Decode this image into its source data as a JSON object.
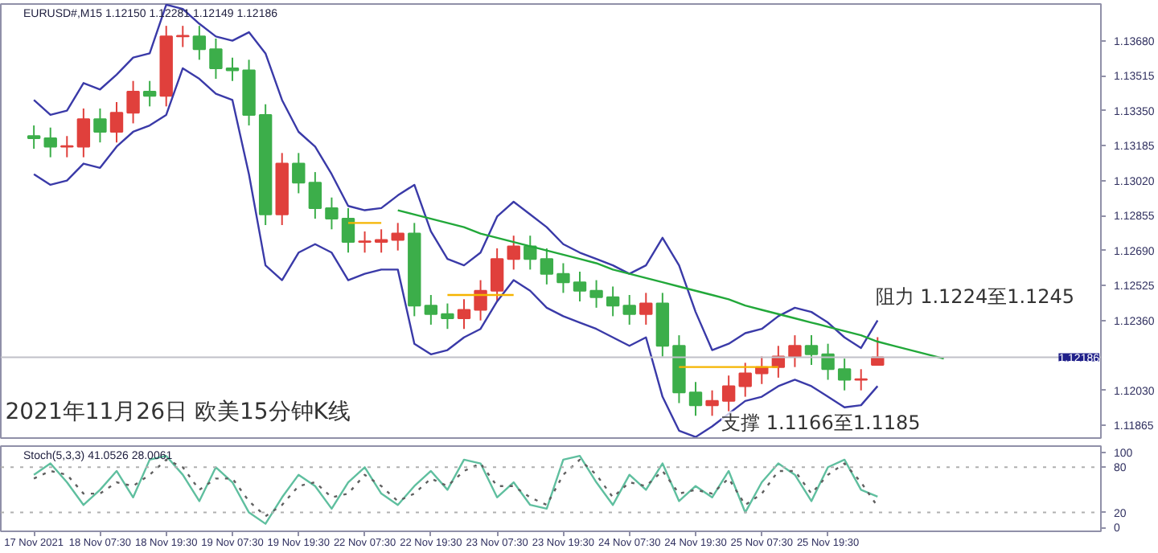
{
  "chart_data": [
    {
      "type": "candlestick",
      "title": "EURUSD#,M15 1.12150 1.12281 1.12149 1.12186",
      "categories": [
        null,
        null,
        null,
        null,
        null,
        null,
        null,
        null,
        null,
        null,
        null,
        null,
        null,
        null,
        null,
        null,
        null,
        null,
        null,
        null,
        null,
        null,
        null,
        null,
        null,
        null,
        null,
        null,
        null,
        null,
        null,
        null,
        null,
        null,
        null,
        null,
        null,
        null,
        null,
        null,
        null,
        null,
        null,
        null,
        null,
        null,
        null,
        null,
        null,
        null,
        null,
        null,
        null,
        null,
        null,
        null
      ],
      "ohlc": [
        [
          1.1323,
          1.1328,
          1.1317,
          1.1322
        ],
        [
          1.1322,
          1.1327,
          1.1313,
          1.1318
        ],
        [
          1.1318,
          1.1323,
          1.1313,
          1.1318
        ],
        [
          1.1318,
          1.1336,
          1.1313,
          1.1331
        ],
        [
          1.1331,
          1.1336,
          1.132,
          1.1325
        ],
        [
          1.1325,
          1.1339,
          1.132,
          1.1334
        ],
        [
          1.1334,
          1.1349,
          1.1329,
          1.1344
        ],
        [
          1.1344,
          1.1349,
          1.1337,
          1.1342
        ],
        [
          1.1342,
          1.1375,
          1.1337,
          1.137
        ],
        [
          1.137,
          1.1375,
          1.1365,
          1.137
        ],
        [
          1.137,
          1.1375,
          1.1359,
          1.1364
        ],
        [
          1.1364,
          1.1369,
          1.135,
          1.1355
        ],
        [
          1.1355,
          1.136,
          1.1349,
          1.1354
        ],
        [
          1.1354,
          1.1359,
          1.1328,
          1.1333
        ],
        [
          1.1333,
          1.1338,
          1.1281,
          1.1286
        ],
        [
          1.1286,
          1.1315,
          1.1281,
          1.131
        ],
        [
          1.131,
          1.1315,
          1.1296,
          1.1301
        ],
        [
          1.1301,
          1.1306,
          1.1284,
          1.1289
        ],
        [
          1.1289,
          1.1294,
          1.1279,
          1.1284
        ],
        [
          1.1284,
          1.1289,
          1.1268,
          1.1273
        ],
        [
          1.1273,
          1.1278,
          1.1268,
          1.1273
        ],
        [
          1.1273,
          1.1279,
          1.1268,
          1.1274
        ],
        [
          1.1274,
          1.1282,
          1.1269,
          1.1277
        ],
        [
          1.1277,
          1.1282,
          1.1238,
          1.1243
        ],
        [
          1.1243,
          1.1248,
          1.1234,
          1.1239
        ],
        [
          1.1239,
          1.1244,
          1.1232,
          1.1237
        ],
        [
          1.1237,
          1.1246,
          1.1232,
          1.1241
        ],
        [
          1.1241,
          1.1255,
          1.1236,
          1.125
        ],
        [
          1.125,
          1.127,
          1.1245,
          1.1265
        ],
        [
          1.1265,
          1.1276,
          1.126,
          1.1271
        ],
        [
          1.1271,
          1.1276,
          1.126,
          1.1265
        ],
        [
          1.1265,
          1.127,
          1.1253,
          1.1258
        ],
        [
          1.1258,
          1.1263,
          1.1249,
          1.1254
        ],
        [
          1.1254,
          1.1259,
          1.1245,
          1.125
        ],
        [
          1.125,
          1.1255,
          1.1242,
          1.1247
        ],
        [
          1.1247,
          1.1252,
          1.1238,
          1.1243
        ],
        [
          1.1243,
          1.1248,
          1.1234,
          1.1239
        ],
        [
          1.1239,
          1.1249,
          1.1234,
          1.1244
        ],
        [
          1.1244,
          1.1249,
          1.1219,
          1.1224
        ],
        [
          1.1224,
          1.1229,
          1.1197,
          1.1202
        ],
        [
          1.1202,
          1.1207,
          1.1191,
          1.1196
        ],
        [
          1.1196,
          1.1203,
          1.1191,
          1.1198
        ],
        [
          1.1198,
          1.121,
          1.1193,
          1.1205
        ],
        [
          1.1205,
          1.1216,
          1.12,
          1.1211
        ],
        [
          1.1211,
          1.1219,
          1.1206,
          1.1214
        ],
        [
          1.1214,
          1.1224,
          1.1209,
          1.1219
        ],
        [
          1.1219,
          1.1229,
          1.1214,
          1.1224
        ],
        [
          1.1224,
          1.1229,
          1.1215,
          1.122
        ],
        [
          1.122,
          1.1225,
          1.1208,
          1.1213
        ],
        [
          1.1213,
          1.1218,
          1.1203,
          1.1208
        ],
        [
          1.1208,
          1.1213,
          1.1203,
          1.1208
        ],
        [
          1.1215,
          1.12281,
          1.12149,
          1.12186
        ],
        null,
        null,
        null,
        null
      ],
      "series": [
        {
          "type": "line",
          "color": "#3a3aa8",
          "values": [
            1.134,
            1.1333,
            1.1335,
            1.1348,
            1.1345,
            1.1352,
            1.136,
            1.1362,
            1.1385,
            1.1383,
            1.1376,
            1.137,
            1.1368,
            1.1372,
            1.1362,
            1.134,
            1.1325,
            1.1318,
            1.1305,
            1.129,
            1.1288,
            1.1289,
            1.1295,
            1.13,
            1.1278,
            1.1265,
            1.1262,
            1.1268,
            1.1285,
            1.1292,
            1.1286,
            1.128,
            1.1272,
            1.1268,
            1.1265,
            1.1262,
            1.1258,
            1.1262,
            1.1275,
            1.1262,
            1.124,
            1.1222,
            1.1225,
            1.123,
            1.1232,
            1.1238,
            1.1242,
            1.124,
            1.1235,
            1.1228,
            1.1223,
            1.1236,
            null,
            null,
            null,
            null
          ]
        },
        {
          "type": "line",
          "color": "#3a3aa8",
          "values": [
            1.1305,
            1.13,
            1.1302,
            1.131,
            1.1308,
            1.1318,
            1.1325,
            1.1328,
            1.1333,
            1.1355,
            1.135,
            1.1343,
            1.134,
            1.1305,
            1.1262,
            1.1255,
            1.1268,
            1.1272,
            1.1268,
            1.1255,
            1.1258,
            1.126,
            1.126,
            1.1225,
            1.122,
            1.1222,
            1.1228,
            1.1232,
            1.1245,
            1.1255,
            1.125,
            1.1242,
            1.1238,
            1.1235,
            1.1232,
            1.1228,
            1.1224,
            1.1228,
            1.12,
            1.1184,
            1.1181,
            1.1186,
            1.1192,
            1.1198,
            1.12,
            1.1205,
            1.1208,
            1.1205,
            1.12,
            1.1195,
            1.1196,
            1.1205,
            null,
            null,
            null,
            null
          ]
        },
        {
          "type": "line",
          "color": "#f5b400",
          "values": [
            null,
            null,
            null,
            null,
            null,
            null,
            null,
            null,
            null,
            null,
            null,
            null,
            null,
            null,
            null,
            null,
            null,
            null,
            null,
            1.1282,
            1.1282,
            1.1282,
            null,
            null,
            null,
            null,
            null,
            null,
            null,
            null,
            null,
            null,
            null,
            null,
            null,
            null,
            null,
            null,
            null,
            null,
            null,
            null,
            null,
            null,
            null,
            null,
            null,
            null,
            null,
            null,
            null,
            null,
            null,
            null,
            null,
            null
          ]
        },
        {
          "type": "line",
          "color": "#f5b400",
          "values": [
            null,
            null,
            null,
            null,
            null,
            null,
            null,
            null,
            null,
            null,
            null,
            null,
            null,
            null,
            null,
            null,
            null,
            null,
            null,
            null,
            null,
            null,
            null,
            null,
            null,
            1.1248,
            1.1248,
            1.1248,
            1.1248,
            1.1248,
            null,
            null,
            null,
            null,
            null,
            null,
            null,
            null,
            null,
            null,
            null,
            null,
            null,
            null,
            null,
            null,
            null,
            null,
            null,
            null,
            null,
            null,
            null,
            null,
            null,
            null
          ]
        },
        {
          "type": "line",
          "color": "#f5b400",
          "values": [
            null,
            null,
            null,
            null,
            null,
            null,
            null,
            null,
            null,
            null,
            null,
            null,
            null,
            null,
            null,
            null,
            null,
            null,
            null,
            null,
            null,
            null,
            null,
            null,
            null,
            null,
            null,
            null,
            null,
            null,
            null,
            null,
            null,
            null,
            null,
            null,
            null,
            null,
            null,
            1.1214,
            1.1214,
            1.1214,
            1.1214,
            1.1214,
            1.1214,
            1.1214,
            null,
            null,
            null,
            null,
            null,
            null,
            null,
            null,
            null,
            null
          ]
        },
        {
          "type": "line",
          "color": "#22a83a",
          "values": [
            null,
            null,
            null,
            null,
            null,
            null,
            null,
            null,
            null,
            null,
            null,
            null,
            null,
            null,
            null,
            null,
            null,
            null,
            null,
            null,
            null,
            null,
            1.1288,
            1.1286,
            1.1284,
            1.1282,
            1.128,
            1.1277,
            1.1275,
            1.1273,
            1.1271,
            1.1269,
            1.1267,
            1.1265,
            1.1263,
            1.126,
            1.1258,
            1.1256,
            1.1254,
            1.1252,
            1.125,
            1.1248,
            1.1246,
            1.1243,
            1.1241,
            1.1239,
            1.1237,
            1.1235,
            1.1233,
            1.1231,
            1.1229,
            1.1226,
            1.1224,
            1.1222,
            1.122,
            1.1218
          ]
        }
      ],
      "ylim": [
        1.11805,
        1.13853
      ],
      "yticks": [
        {
          "value": 1.1368,
          "label": "1.13680"
        },
        {
          "value": 1.13515,
          "label": "1.13515"
        },
        {
          "value": 1.1335,
          "label": "1.13350"
        },
        {
          "value": 1.13185,
          "label": "1.13185"
        },
        {
          "value": 1.1302,
          "label": "1.13020"
        },
        {
          "value": 1.12855,
          "label": "1.12855"
        },
        {
          "value": 1.1269,
          "label": "1.12690"
        },
        {
          "value": 1.12525,
          "label": "1.12525"
        },
        {
          "value": 1.1236,
          "label": "1.12360"
        },
        {
          "value": 1.1203,
          "label": "1.12030"
        },
        {
          "value": 1.11865,
          "label": "1.11865"
        }
      ],
      "tick_labels": "y",
      "ref_lines": [
        {
          "axis": "y",
          "value": 1.12186,
          "label": "1.12186",
          "color": "#c0c0c8"
        }
      ],
      "annotations": [
        "2021年11月26日 欧美15分钟K线",
        "阻力 1.1224至1.1245",
        "支撑 1.1166至1.1185"
      ]
    },
    {
      "type": "line",
      "title": "Stoch(5,3,3) 41.0526 28.0061",
      "categories": [
        "17 Nov 2021",
        null,
        null,
        null,
        "18 Nov 07:30",
        null,
        null,
        null,
        "18 Nov 19:30",
        null,
        null,
        null,
        "19 Nov 07:30",
        null,
        null,
        null,
        "19 Nov 19:30",
        null,
        null,
        null,
        "22 Nov 07:30",
        null,
        null,
        null,
        "22 Nov 19:30",
        null,
        null,
        null,
        "23 Nov 07:30",
        null,
        null,
        null,
        "23 Nov 19:30",
        null,
        null,
        null,
        "24 Nov 07:30",
        null,
        null,
        null,
        "24 Nov 19:30",
        null,
        null,
        null,
        "25 Nov 07:30",
        null,
        null,
        null,
        "25 Nov 19:30",
        null,
        null,
        null,
        null,
        null,
        null,
        null
      ],
      "series": [
        {
          "color": "#5fbf9f",
          "line_style": "solid",
          "values": [
            70,
            85,
            60,
            30,
            50,
            75,
            40,
            90,
            95,
            70,
            35,
            80,
            60,
            20,
            5,
            40,
            70,
            55,
            25,
            60,
            80,
            45,
            30,
            55,
            75,
            50,
            90,
            85,
            40,
            60,
            30,
            25,
            90,
            95,
            60,
            30,
            70,
            50,
            85,
            35,
            55,
            40,
            75,
            20,
            60,
            85,
            70,
            35,
            80,
            90,
            50,
            41,
            null,
            null,
            null,
            null
          ]
        },
        {
          "color": "#606060",
          "line_style": "dotted",
          "values": [
            65,
            75,
            70,
            45,
            45,
            60,
            55,
            70,
            90,
            80,
            50,
            65,
            65,
            35,
            15,
            30,
            55,
            60,
            40,
            45,
            70,
            55,
            35,
            45,
            65,
            55,
            75,
            85,
            55,
            55,
            40,
            30,
            70,
            90,
            70,
            40,
            60,
            55,
            75,
            45,
            50,
            45,
            65,
            30,
            45,
            75,
            75,
            45,
            70,
            85,
            60,
            28,
            null,
            null,
            null,
            null
          ]
        }
      ],
      "ylim": [
        -5,
        108
      ],
      "yticks": [
        0,
        20,
        80,
        100
      ],
      "ref_lines": [
        {
          "axis": "y",
          "value": 20,
          "color": "#b0b0b0",
          "line_style": "dotted"
        },
        {
          "axis": "y",
          "value": 80,
          "color": "#b0b0b0",
          "line_style": "dotted"
        }
      ]
    }
  ]
}
